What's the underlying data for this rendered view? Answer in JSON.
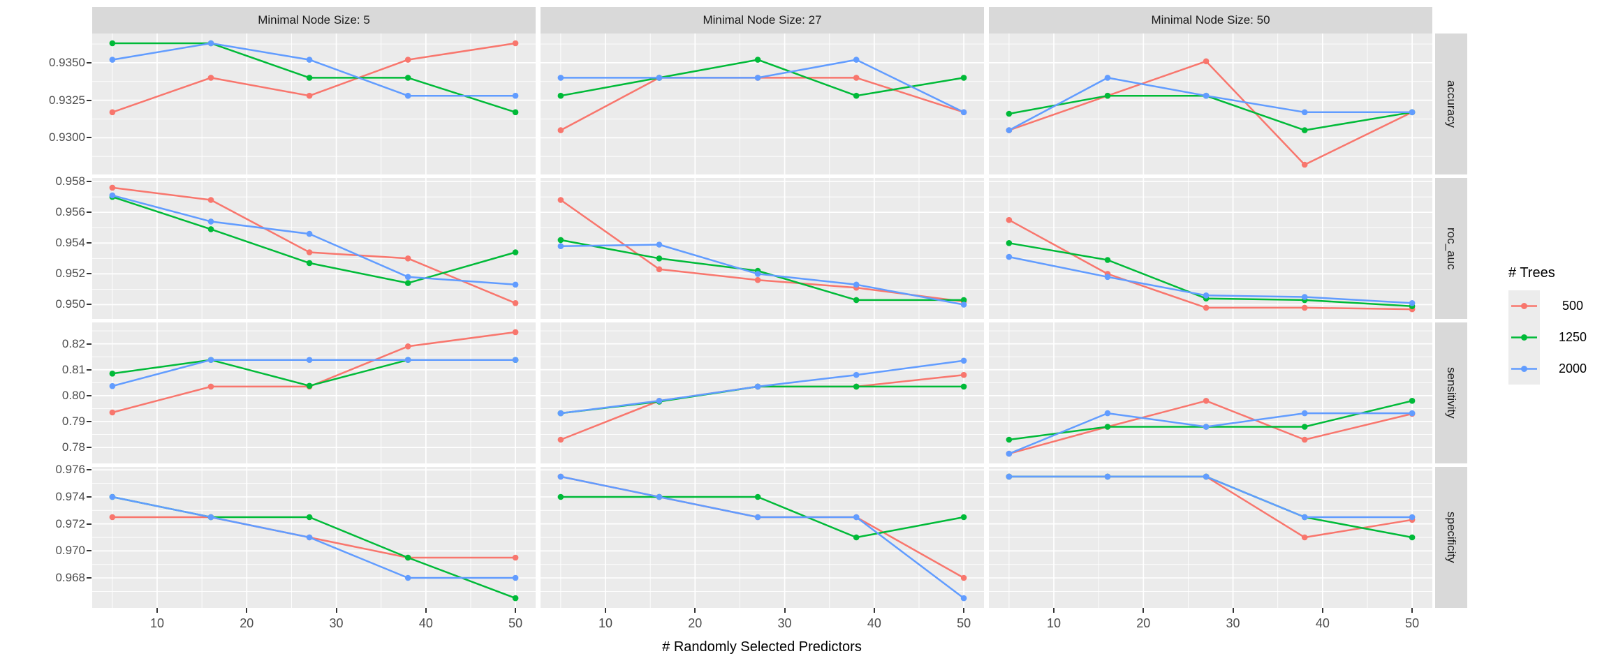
{
  "chart_data": {
    "type": "line",
    "title": "",
    "xlabel": "# Randomly Selected Predictors",
    "ylabel": "",
    "x_points": [
      5,
      16,
      27,
      38,
      50
    ],
    "x_domain": [
      2.75,
      52.25
    ],
    "x_ticks": {
      "values": [
        10,
        20,
        30,
        40,
        50
      ],
      "labels": [
        "10",
        "20",
        "30",
        "40",
        "50"
      ]
    },
    "x_minor": [
      5,
      15,
      25,
      35,
      45
    ],
    "col_facets": [
      "Minimal Node Size: 5",
      "Minimal Node Size: 27",
      "Minimal Node Size: 50"
    ],
    "series": [
      {
        "name": "500",
        "color": "#F8766D"
      },
      {
        "name": "1250",
        "color": "#00BA38"
      },
      {
        "name": "2000",
        "color": "#619CFF"
      }
    ],
    "legend": {
      "title": "# Trees",
      "entries": [
        {
          "label": "500",
          "color": "#F8766D"
        },
        {
          "label": "1250",
          "color": "#00BA38"
        },
        {
          "label": "2000",
          "color": "#619CFF"
        }
      ]
    },
    "rows": [
      {
        "label": "accuracy",
        "y_domain": [
          0.92755,
          0.93695
        ],
        "y_ticks": {
          "values": [
            0.93,
            0.9325,
            0.935
          ],
          "labels": [
            "0.9300",
            "0.9325",
            "0.9350"
          ]
        },
        "y_minor": [
          0.92875,
          0.93125,
          0.93375,
          0.93625
        ],
        "panels": [
          {
            "series_values": [
              [
                0.9317,
                0.934,
                0.9328,
                0.9352,
                0.9363
              ],
              [
                0.9363,
                0.9363,
                0.934,
                0.934,
                0.9317
              ],
              [
                0.9352,
                0.9363,
                0.9352,
                0.9328,
                0.9328
              ]
            ]
          },
          {
            "series_values": [
              [
                0.9305,
                0.934,
                0.934,
                0.934,
                0.9317
              ],
              [
                0.9328,
                0.934,
                0.9352,
                0.9328,
                0.934
              ],
              [
                0.934,
                0.934,
                0.934,
                0.9352,
                0.9317
              ]
            ]
          },
          {
            "series_values": [
              [
                0.9305,
                0.9328,
                0.9351,
                0.9282,
                0.9317
              ],
              [
                0.9316,
                0.9328,
                0.9328,
                0.9305,
                0.9317
              ],
              [
                0.9305,
                0.934,
                0.9328,
                0.9317,
                0.9317
              ]
            ]
          }
        ]
      },
      {
        "label": "roc_auc",
        "y_domain": [
          0.94907,
          0.95823
        ],
        "y_ticks": {
          "values": [
            0.95,
            0.952,
            0.954,
            0.956,
            0.958
          ],
          "labels": [
            "0.950",
            "0.952",
            "0.954",
            "0.956",
            "0.958"
          ]
        },
        "y_minor": [
          0.951,
          0.953,
          0.955,
          0.957
        ],
        "panels": [
          {
            "series_values": [
              [
                0.9576,
                0.9568,
                0.9534,
                0.953,
                0.9501
              ],
              [
                0.957,
                0.9549,
                0.9527,
                0.9514,
                0.9534
              ],
              [
                0.9571,
                0.9554,
                0.9546,
                0.9518,
                0.9513
              ]
            ]
          },
          {
            "series_values": [
              [
                0.9568,
                0.9523,
                0.9516,
                0.9511,
                0.9502
              ],
              [
                0.9542,
                0.953,
                0.9522,
                0.9503,
                0.9503
              ],
              [
                0.9538,
                0.9539,
                0.952,
                0.9513,
                0.95
              ]
            ]
          },
          {
            "series_values": [
              [
                0.9555,
                0.952,
                0.9498,
                0.9498,
                0.9497
              ],
              [
                0.954,
                0.9529,
                0.9504,
                0.9503,
                0.9499
              ],
              [
                0.9531,
                0.9518,
                0.9506,
                0.9505,
                0.9501
              ]
            ]
          }
        ]
      },
      {
        "label": "sensitivity",
        "y_domain": [
          0.77385,
          0.82825
        ],
        "y_ticks": {
          "values": [
            0.78,
            0.79,
            0.8,
            0.81,
            0.82
          ],
          "labels": [
            "0.78",
            "0.79",
            "0.80",
            "0.81",
            "0.82"
          ]
        },
        "y_minor": [
          0.785,
          0.795,
          0.805,
          0.815,
          0.825
        ],
        "panels": [
          {
            "series_values": [
              [
                0.7935,
                0.8035,
                0.8035,
                0.819,
                0.8245
              ],
              [
                0.8085,
                0.8138,
                0.8038,
                0.8138,
                0.8138
              ],
              [
                0.8037,
                0.8138,
                0.8138,
                0.8138,
                0.8138
              ]
            ]
          },
          {
            "series_values": [
              [
                0.783,
                0.798,
                0.8035,
                0.8035,
                0.808
              ],
              [
                0.7932,
                0.7977,
                0.8035,
                0.8035,
                0.8035
              ],
              [
                0.7932,
                0.798,
                0.8035,
                0.808,
                0.8135
              ]
            ]
          },
          {
            "series_values": [
              [
                0.7776,
                0.788,
                0.798,
                0.783,
                0.793
              ],
              [
                0.783,
                0.788,
                0.788,
                0.788,
                0.798
              ],
              [
                0.7776,
                0.7932,
                0.788,
                0.7932,
                0.7932
              ]
            ]
          }
        ]
      },
      {
        "label": "specificity",
        "y_domain": [
          0.96578,
          0.97622
        ],
        "y_ticks": {
          "values": [
            0.968,
            0.97,
            0.972,
            0.974,
            0.976
          ],
          "labels": [
            "0.968",
            "0.970",
            "0.972",
            "0.974",
            "0.976"
          ]
        },
        "y_minor": [
          0.967,
          0.969,
          0.971,
          0.973,
          0.975
        ],
        "panels": [
          {
            "series_values": [
              [
                0.9725,
                0.9725,
                0.971,
                0.9695,
                0.9695
              ],
              [
                0.974,
                0.9725,
                0.9725,
                0.9695,
                0.9665
              ],
              [
                0.974,
                0.9725,
                0.971,
                0.968,
                0.968
              ]
            ]
          },
          {
            "series_values": [
              [
                0.9755,
                0.974,
                0.9725,
                0.9725,
                0.968
              ],
              [
                0.974,
                0.974,
                0.974,
                0.971,
                0.9725
              ],
              [
                0.9755,
                0.974,
                0.9725,
                0.9725,
                0.9665
              ]
            ]
          },
          {
            "series_values": [
              [
                0.9755,
                0.9755,
                0.9755,
                0.971,
                0.9723
              ],
              [
                0.9755,
                0.9755,
                0.9755,
                0.9725,
                0.971
              ],
              [
                0.9755,
                0.9755,
                0.9755,
                0.9725,
                0.9725
              ]
            ]
          }
        ]
      }
    ],
    "style": {
      "panel_bg": "#EBEBEB",
      "strip_bg": "#D9D9D9",
      "grid_color": "#FFFFFF",
      "axis_text_color": "#4D4D4D",
      "strip_text_color": "#1A1A1A",
      "tick_mark_color": "#333333",
      "legend_key_bg": "#ECECEC",
      "background": "#FFFFFF"
    }
  }
}
